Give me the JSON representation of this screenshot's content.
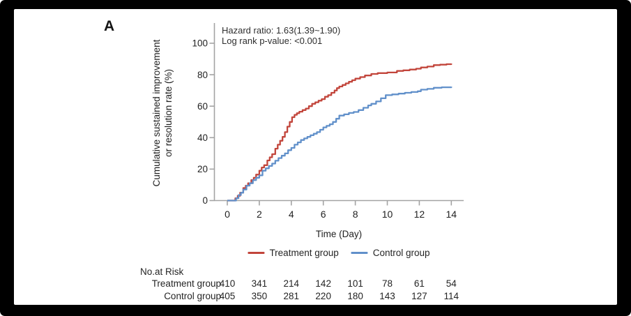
{
  "panel_label": "A",
  "annotation": {
    "hazard_ratio": "Hazard ratio: 1.63(1.39~1.90)",
    "log_rank": "Log rank p-value: <0.001"
  },
  "chart_data": {
    "type": "line",
    "subtype": "kaplan-meier-step",
    "title": "",
    "xlabel": "Time (Day)",
    "ylabel_line1": "Cumulative sustained improvement",
    "ylabel_line2": "or resolution rate (%)",
    "xlim": [
      0,
      14
    ],
    "ylim": [
      0,
      100
    ],
    "xticks": [
      0,
      2,
      4,
      6,
      8,
      10,
      12,
      14
    ],
    "yticks": [
      0,
      20,
      40,
      60,
      80,
      100
    ],
    "grid": false,
    "legend_position": "bottom-center",
    "series": [
      {
        "name": "Treatment group",
        "color": "#c2453b",
        "points": [
          [
            0,
            0
          ],
          [
            0.35,
            0
          ],
          [
            0.5,
            1.5
          ],
          [
            0.65,
            3
          ],
          [
            0.8,
            5
          ],
          [
            1.0,
            8
          ],
          [
            1.15,
            9.5
          ],
          [
            1.3,
            11
          ],
          [
            1.5,
            13
          ],
          [
            1.65,
            14.5
          ],
          [
            1.8,
            16.5
          ],
          [
            2.0,
            19
          ],
          [
            2.15,
            21
          ],
          [
            2.3,
            22.5
          ],
          [
            2.5,
            25.5
          ],
          [
            2.65,
            27.5
          ],
          [
            2.8,
            29.5
          ],
          [
            3.0,
            33
          ],
          [
            3.15,
            35.5
          ],
          [
            3.3,
            38
          ],
          [
            3.45,
            40.5
          ],
          [
            3.6,
            43.5
          ],
          [
            3.75,
            47
          ],
          [
            3.9,
            50
          ],
          [
            4.05,
            53
          ],
          [
            4.2,
            54.5
          ],
          [
            4.35,
            55.5
          ],
          [
            4.5,
            56.5
          ],
          [
            4.7,
            57.5
          ],
          [
            4.9,
            58.5
          ],
          [
            5.1,
            60
          ],
          [
            5.3,
            61.5
          ],
          [
            5.5,
            62.5
          ],
          [
            5.7,
            63.5
          ],
          [
            5.9,
            64.5
          ],
          [
            6.1,
            66
          ],
          [
            6.3,
            67
          ],
          [
            6.5,
            68.5
          ],
          [
            6.7,
            70
          ],
          [
            6.85,
            71.5
          ],
          [
            7.0,
            72.5
          ],
          [
            7.2,
            73.5
          ],
          [
            7.4,
            74.5
          ],
          [
            7.6,
            75.5
          ],
          [
            7.8,
            76.5
          ],
          [
            8.0,
            77.5
          ],
          [
            8.3,
            78.5
          ],
          [
            8.6,
            79.5
          ],
          [
            9.0,
            80.5
          ],
          [
            9.4,
            81
          ],
          [
            10.0,
            81.4
          ],
          [
            10.6,
            82.4
          ],
          [
            11.0,
            82.8
          ],
          [
            11.4,
            83.3
          ],
          [
            11.8,
            83.8
          ],
          [
            12.1,
            84.6
          ],
          [
            12.5,
            85.2
          ],
          [
            12.9,
            86.1
          ],
          [
            13.3,
            86.4
          ],
          [
            13.7,
            86.7
          ],
          [
            14,
            87.1
          ]
        ]
      },
      {
        "name": "Control group",
        "color": "#6190ca",
        "points": [
          [
            0,
            0
          ],
          [
            0.4,
            0
          ],
          [
            0.55,
            1.5
          ],
          [
            0.7,
            3.5
          ],
          [
            0.85,
            5
          ],
          [
            1.0,
            7
          ],
          [
            1.2,
            9.5
          ],
          [
            1.4,
            11
          ],
          [
            1.6,
            13
          ],
          [
            1.8,
            14.5
          ],
          [
            2.0,
            16
          ],
          [
            2.2,
            19
          ],
          [
            2.4,
            20.5
          ],
          [
            2.6,
            22
          ],
          [
            2.8,
            23.5
          ],
          [
            3.0,
            25.3
          ],
          [
            3.2,
            27
          ],
          [
            3.4,
            28.5
          ],
          [
            3.6,
            30
          ],
          [
            3.8,
            32
          ],
          [
            4.0,
            33.5
          ],
          [
            4.2,
            35.5
          ],
          [
            4.4,
            37
          ],
          [
            4.6,
            38.5
          ],
          [
            4.8,
            39.5
          ],
          [
            5.0,
            40.5
          ],
          [
            5.2,
            41.5
          ],
          [
            5.4,
            42.5
          ],
          [
            5.6,
            43.5
          ],
          [
            5.8,
            45
          ],
          [
            6.0,
            46.5
          ],
          [
            6.2,
            47.5
          ],
          [
            6.4,
            48.5
          ],
          [
            6.6,
            50
          ],
          [
            6.8,
            52
          ],
          [
            7.0,
            54
          ],
          [
            7.3,
            54.8
          ],
          [
            7.6,
            55.7
          ],
          [
            7.9,
            56.3
          ],
          [
            8.2,
            57.5
          ],
          [
            8.5,
            59
          ],
          [
            8.8,
            60.5
          ],
          [
            9.0,
            61.5
          ],
          [
            9.3,
            63
          ],
          [
            9.6,
            65
          ],
          [
            9.9,
            67
          ],
          [
            10.3,
            67.5
          ],
          [
            10.7,
            68
          ],
          [
            11.1,
            68.5
          ],
          [
            11.5,
            69
          ],
          [
            11.9,
            69.5
          ],
          [
            12.1,
            70.5
          ],
          [
            12.5,
            71
          ],
          [
            12.9,
            71.7
          ],
          [
            13.4,
            72
          ],
          [
            14,
            72.4
          ]
        ]
      }
    ]
  },
  "risk_table": {
    "title": "No.at Risk",
    "time_columns": [
      0,
      2,
      4,
      6,
      8,
      10,
      12,
      14
    ],
    "rows": [
      {
        "label": "Treatment group",
        "counts": [
          "410",
          "341",
          "214",
          "142",
          "101",
          "78",
          "61",
          "54"
        ]
      },
      {
        "label": "Control group",
        "counts": [
          "405",
          "350",
          "281",
          "220",
          "180",
          "143",
          "127",
          "114"
        ]
      }
    ]
  },
  "colors": {
    "axis": "#a3a3a3",
    "tick_text": "#1f1f1f",
    "treatment": "#c2453b",
    "control": "#6190ca",
    "frame": "#000000",
    "background": "#ffffff"
  }
}
